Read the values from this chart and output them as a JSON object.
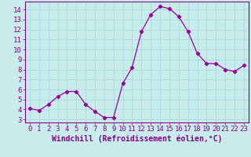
{
  "x": [
    0,
    1,
    2,
    3,
    4,
    5,
    6,
    7,
    8,
    9,
    10,
    11,
    12,
    13,
    14,
    15,
    16,
    17,
    18,
    19,
    20,
    21,
    22,
    23
  ],
  "y": [
    4.1,
    3.9,
    4.5,
    5.3,
    5.8,
    5.8,
    4.5,
    3.8,
    3.2,
    3.2,
    6.6,
    8.2,
    11.8,
    13.5,
    14.3,
    14.1,
    13.3,
    11.8,
    9.6,
    8.6,
    8.6,
    8.0,
    7.8,
    8.4
  ],
  "line_color": "#990099",
  "marker": "D",
  "marker_size": 2.2,
  "bg_color": "#c8ecec",
  "grid_color": "#aad8d8",
  "xlabel": "Windchill (Refroidissement éolien,°C)",
  "xlim": [
    -0.5,
    23.5
  ],
  "ylim": [
    2.7,
    14.8
  ],
  "yticks": [
    3,
    4,
    5,
    6,
    7,
    8,
    9,
    10,
    11,
    12,
    13,
    14
  ],
  "xticks": [
    0,
    1,
    2,
    3,
    4,
    5,
    6,
    7,
    8,
    9,
    10,
    11,
    12,
    13,
    14,
    15,
    16,
    17,
    18,
    19,
    20,
    21,
    22,
    23
  ],
  "tick_color": "#880088",
  "label_color": "#880088",
  "spine_color": "#880088",
  "xlabel_fontsize": 7,
  "tick_fontsize": 6.5,
  "border_color": "#880088"
}
